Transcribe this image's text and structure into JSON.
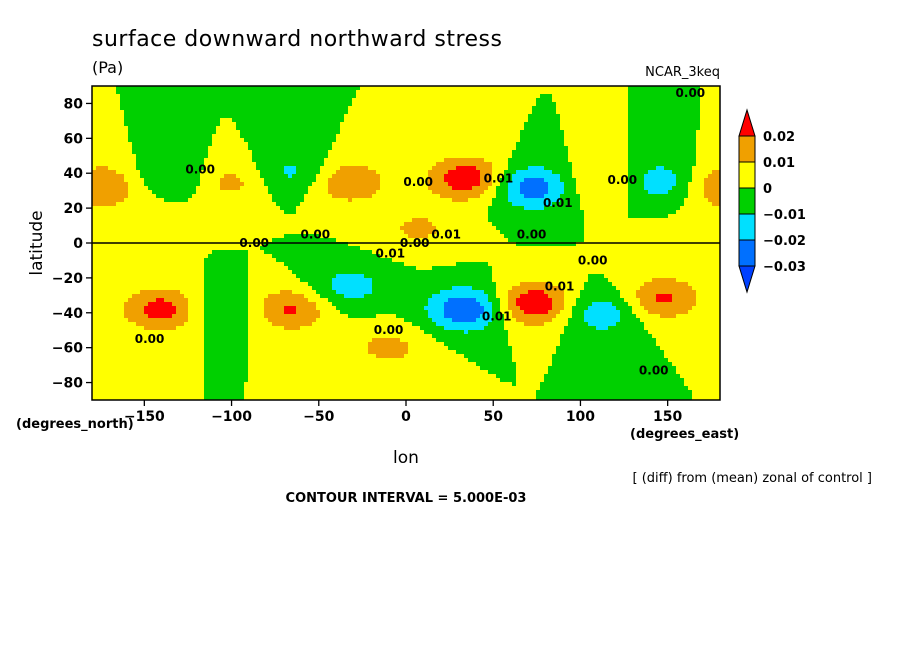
{
  "chart_data": {
    "type": "heatmap",
    "title": "surface downward northward stress",
    "units": "(Pa)",
    "model": "NCAR_3keq",
    "xlabel": "lon",
    "ylabel": "latitude",
    "x_unit_label": "(degrees_east)",
    "y_unit_label": "(degrees_north)",
    "xlim": [
      -180,
      180
    ],
    "ylim": [
      -90,
      90
    ],
    "x_ticks": [
      -150,
      -100,
      -50,
      0,
      50,
      100,
      150
    ],
    "y_ticks": [
      80,
      60,
      40,
      20,
      0,
      -20,
      -40,
      -60,
      -80
    ],
    "x_tick_labels": [
      "-150",
      "-100",
      "-50",
      "0",
      "50",
      "100",
      "150"
    ],
    "y_tick_labels": [
      "80",
      "60",
      "40",
      "20",
      "0",
      "-20",
      "-40",
      "-60",
      "-80"
    ],
    "colorbar": {
      "labels": [
        "0.02",
        "0.01",
        "0",
        "-0.01",
        "-0.02",
        "-0.03"
      ],
      "levels": [
        0.02,
        0.01,
        0,
        -0.01,
        -0.02,
        -0.03
      ],
      "colors": [
        "#ff0000",
        "#f0a000",
        "#ffff00",
        "#00d000",
        "#00e0ff",
        "#0070ff",
        "#0040ff"
      ],
      "band_colors_top_to_bottom": [
        "#f0a000",
        "#ffff00",
        "#00d000",
        "#00e0ff",
        "#0070ff"
      ]
    },
    "field_features": [
      {
        "lon": -173,
        "lat": 35,
        "value": 0.012
      },
      {
        "lon": -100,
        "lat": 35,
        "value": 0.014
      },
      {
        "lon": -33,
        "lat": 35,
        "value": 0.02
      },
      {
        "lon": 35,
        "lat": 37,
        "value": 0.028
      },
      {
        "lon": 7,
        "lat": 8,
        "value": 0.012
      },
      {
        "lon": 113,
        "lat": 35,
        "value": 0.013
      },
      {
        "lon": 178,
        "lat": 30,
        "value": 0.01
      },
      {
        "lon": -134,
        "lat": 38,
        "value": -0.012
      },
      {
        "lon": -65,
        "lat": 40,
        "value": -0.014
      },
      {
        "lon": 72,
        "lat": 32,
        "value": -0.027
      },
      {
        "lon": 145,
        "lat": 35,
        "value": -0.018
      },
      {
        "lon": -140,
        "lat": -38,
        "value": 0.025
      },
      {
        "lon": -67,
        "lat": -38,
        "value": 0.022
      },
      {
        "lon": 73,
        "lat": -35,
        "value": 0.03
      },
      {
        "lon": 147,
        "lat": -32,
        "value": 0.022
      },
      {
        "lon": -10,
        "lat": -60,
        "value": 0.013
      },
      {
        "lon": -105,
        "lat": -38,
        "value": -0.01
      },
      {
        "lon": -33,
        "lat": -25,
        "value": -0.015
      },
      {
        "lon": 35,
        "lat": -38,
        "value": -0.03
      },
      {
        "lon": 112,
        "lat": -40,
        "value": -0.018
      },
      {
        "lon": -150,
        "lat": 20,
        "value": 0.004
      },
      {
        "lon": 160,
        "lat": 0,
        "value": 0.005
      }
    ],
    "contour_labels": [
      {
        "text": "0.00",
        "lon": 163,
        "lat": 86
      },
      {
        "text": "0.00",
        "lon": -118,
        "lat": 42
      },
      {
        "text": "0.00",
        "lon": 7,
        "lat": 35
      },
      {
        "text": "0.01",
        "lon": 53,
        "lat": 37
      },
      {
        "text": "0.01",
        "lon": 87,
        "lat": 23
      },
      {
        "text": "0.00",
        "lon": 124,
        "lat": 36
      },
      {
        "text": "0.00",
        "lon": -87,
        "lat": 0
      },
      {
        "text": "0.00",
        "lon": -52,
        "lat": 5
      },
      {
        "text": "0.00",
        "lon": 5,
        "lat": 0
      },
      {
        "text": "0.01",
        "lon": 23,
        "lat": 5
      },
      {
        "text": "0.00",
        "lon": 72,
        "lat": 5
      },
      {
        "text": "0.01",
        "lon": -9,
        "lat": -6
      },
      {
        "text": "0.00",
        "lon": 107,
        "lat": -10
      },
      {
        "text": "0.00",
        "lon": -147,
        "lat": -55
      },
      {
        "text": "0.00",
        "lon": -10,
        "lat": -50
      },
      {
        "text": "0.01",
        "lon": 52,
        "lat": -42
      },
      {
        "text": "0.01",
        "lon": 88,
        "lat": -25
      },
      {
        "text": "0.00",
        "lon": 142,
        "lat": -73
      }
    ]
  },
  "footer": {
    "note": "[ (diff) from (mean) zonal of control ]",
    "contour_interval": "CONTOUR INTERVAL = 5.000E-03"
  }
}
